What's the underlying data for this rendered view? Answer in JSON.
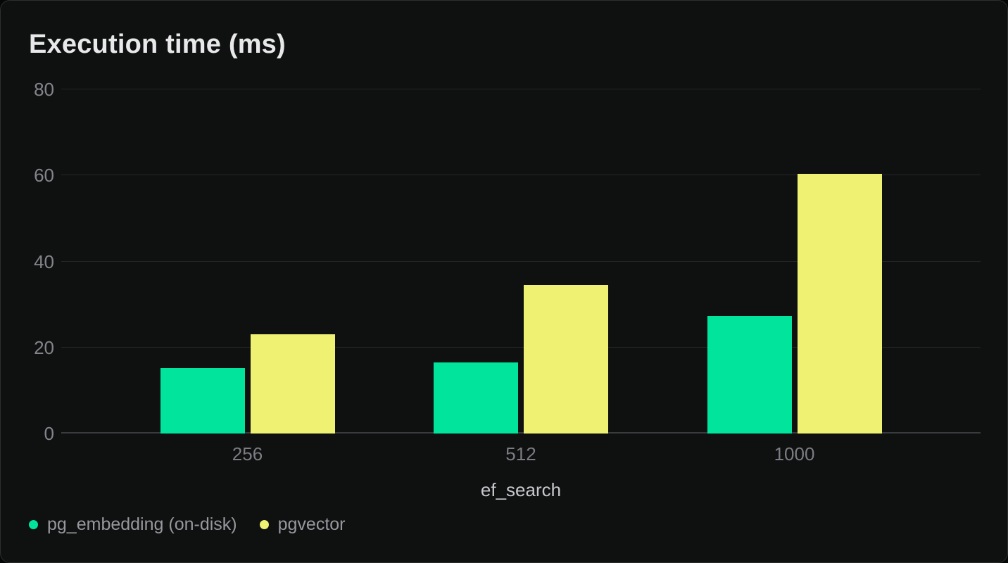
{
  "chart_data": {
    "type": "bar",
    "title": "Execution time (ms)",
    "xlabel": "ef_search",
    "ylabel": "",
    "categories": [
      "256",
      "512",
      "1000"
    ],
    "series": [
      {
        "name": "pg_embedding (on-disk)",
        "color": "#00e59b",
        "values": [
          15.2,
          16.5,
          27.4
        ]
      },
      {
        "name": "pgvector",
        "color": "#eff173",
        "values": [
          23.0,
          34.5,
          60.3
        ]
      }
    ],
    "ylim": [
      0,
      80
    ],
    "yticks": [
      0,
      20,
      40,
      60,
      80
    ],
    "grid": true,
    "legend_position": "bottom-left"
  },
  "colors": {
    "page_background": "#050606",
    "card_background": "#0f1010",
    "card_border": "#2d2e2f",
    "gridline": "#242627",
    "zero_line": "#393b3c",
    "title_text": "#e8e8ea",
    "y_tick_text": "#84858b",
    "x_tick_text": "#7c7c83",
    "axis_title_text": "#c7c8cd",
    "legend_text": "#97989e"
  }
}
